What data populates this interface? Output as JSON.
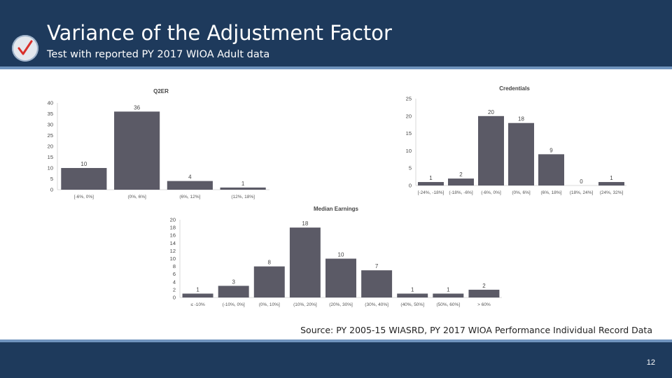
{
  "slide": {
    "title": "Variance of the Adjustment Factor",
    "subtitle": "Test with reported PY 2017 WIOA Adult data",
    "source": "Source: PY 2005-15 WIASRD, PY 2017 WIOA Performance Individual Record Data",
    "page_number": "12",
    "icon": "checkmark-icon",
    "colors": {
      "header": "#1e3a5c",
      "rule": "#6f93bd",
      "bar": "#5b5a66",
      "check": "#d9302b"
    }
  },
  "chart_data": [
    {
      "type": "bar",
      "title": "Q2ER",
      "categories": [
        "[-6%, 0%]",
        "(0%, 6%]",
        "(6%, 12%]",
        "(12%, 18%]"
      ],
      "values": [
        10,
        36,
        4,
        1
      ],
      "ylim": [
        0,
        40
      ],
      "yticks": [
        "0",
        "5",
        "10",
        "15",
        "20",
        "25",
        "30",
        "35",
        "40"
      ],
      "grid": false
    },
    {
      "type": "bar",
      "title": "Credentials",
      "categories": [
        "[-24%, -18%]",
        "(-18%, -6%]",
        "(-6%, 0%]",
        "(0%, 6%]",
        "(6%, 18%]",
        "(18%, 24%]",
        "(24%, 32%]"
      ],
      "values": [
        1,
        2,
        20,
        18,
        9,
        0,
        1
      ],
      "ylim": [
        0,
        25
      ],
      "yticks": [
        "0",
        "5",
        "10",
        "15",
        "20",
        "25"
      ],
      "grid": false
    },
    {
      "type": "bar",
      "title": "Median Earnings",
      "categories": [
        "≤ -10%",
        "(-10%, 0%]",
        "(0%, 10%]",
        "(10%, 20%]",
        "(20%, 30%]",
        "(30%, 40%]",
        "(40%, 50%]",
        "(50%, 60%]",
        "> 60%"
      ],
      "values": [
        1,
        3,
        8,
        18,
        10,
        7,
        1,
        1,
        2
      ],
      "ylim": [
        0,
        20
      ],
      "yticks": [
        "0",
        "2",
        "4",
        "6",
        "8",
        "10",
        "12",
        "14",
        "16",
        "18",
        "20"
      ],
      "grid": false
    }
  ]
}
